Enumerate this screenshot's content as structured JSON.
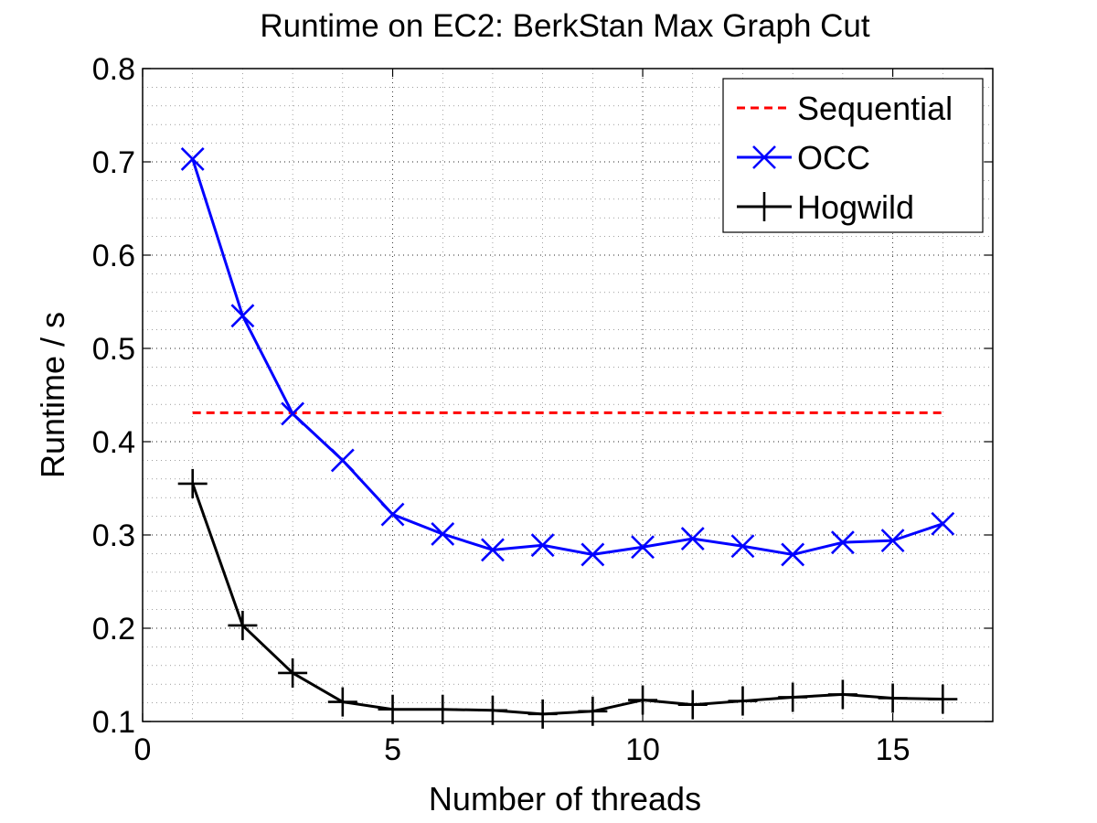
{
  "chart_data": {
    "type": "line",
    "title": "Runtime on EC2: BerkStan Max Graph Cut",
    "xlabel": "Number of threads",
    "ylabel": "Runtime / s",
    "xlim": [
      0,
      17
    ],
    "ylim": [
      0.1,
      0.8
    ],
    "xticks": [
      0,
      5,
      10,
      15
    ],
    "xtick_labels": [
      "0",
      "5",
      "10",
      "15"
    ],
    "yticks": [
      0.1,
      0.2,
      0.3,
      0.4,
      0.5,
      0.6,
      0.7,
      0.8
    ],
    "ytick_labels": [
      "0.1",
      "0.2",
      "0.3",
      "0.4",
      "0.5",
      "0.6",
      "0.7",
      "0.8"
    ],
    "grid": true,
    "minor_grid": true,
    "legend_position": "top-right",
    "series": [
      {
        "name": "Sequential",
        "color": "#ff0000",
        "line_style": "dashed",
        "marker": "none",
        "x": [
          1,
          16
        ],
        "y": [
          0.431,
          0.431
        ]
      },
      {
        "name": "OCC",
        "color": "#0000ff",
        "line_style": "solid",
        "marker": "x",
        "x": [
          1,
          2,
          3,
          4,
          5,
          6,
          7,
          8,
          9,
          10,
          11,
          12,
          13,
          14,
          15,
          16
        ],
        "y": [
          0.703,
          0.535,
          0.43,
          0.38,
          0.322,
          0.301,
          0.284,
          0.289,
          0.279,
          0.287,
          0.296,
          0.288,
          0.279,
          0.292,
          0.294,
          0.312
        ]
      },
      {
        "name": "Hogwild",
        "color": "#000000",
        "line_style": "solid",
        "marker": "+",
        "x": [
          1,
          2,
          3,
          4,
          5,
          6,
          7,
          8,
          9,
          10,
          11,
          12,
          13,
          14,
          15,
          16
        ],
        "y": [
          0.355,
          0.203,
          0.152,
          0.121,
          0.113,
          0.113,
          0.112,
          0.108,
          0.111,
          0.123,
          0.118,
          0.122,
          0.126,
          0.129,
          0.125,
          0.124
        ]
      }
    ]
  }
}
